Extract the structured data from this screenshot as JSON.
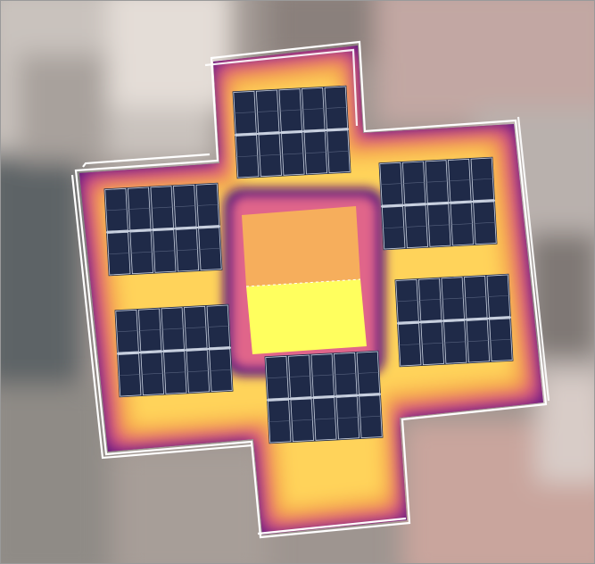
{
  "scene": {
    "description_hidden": true,
    "panel_arrays": [
      {
        "id": "north",
        "rows": 2,
        "cols": 5
      },
      {
        "id": "west",
        "rows": 2,
        "cols": 5
      },
      {
        "id": "east",
        "rows": 2,
        "cols": 5
      },
      {
        "id": "southwest",
        "rows": 2,
        "cols": 5
      },
      {
        "id": "southeast",
        "rows": 2,
        "cols": 5
      },
      {
        "id": "south",
        "rows": 2,
        "cols": 5
      }
    ],
    "colors": {
      "roof_base": "#ffd35a",
      "roof_edge": "#4a0f7d",
      "roof_mid": "#f4a24c",
      "panel": "#1f2a48",
      "panel_grid": "#c9d1e0",
      "obstruction_top": "#f6ae5c",
      "obstruction_bottom": "#ffff5e",
      "outline": "#ffffff"
    }
  }
}
